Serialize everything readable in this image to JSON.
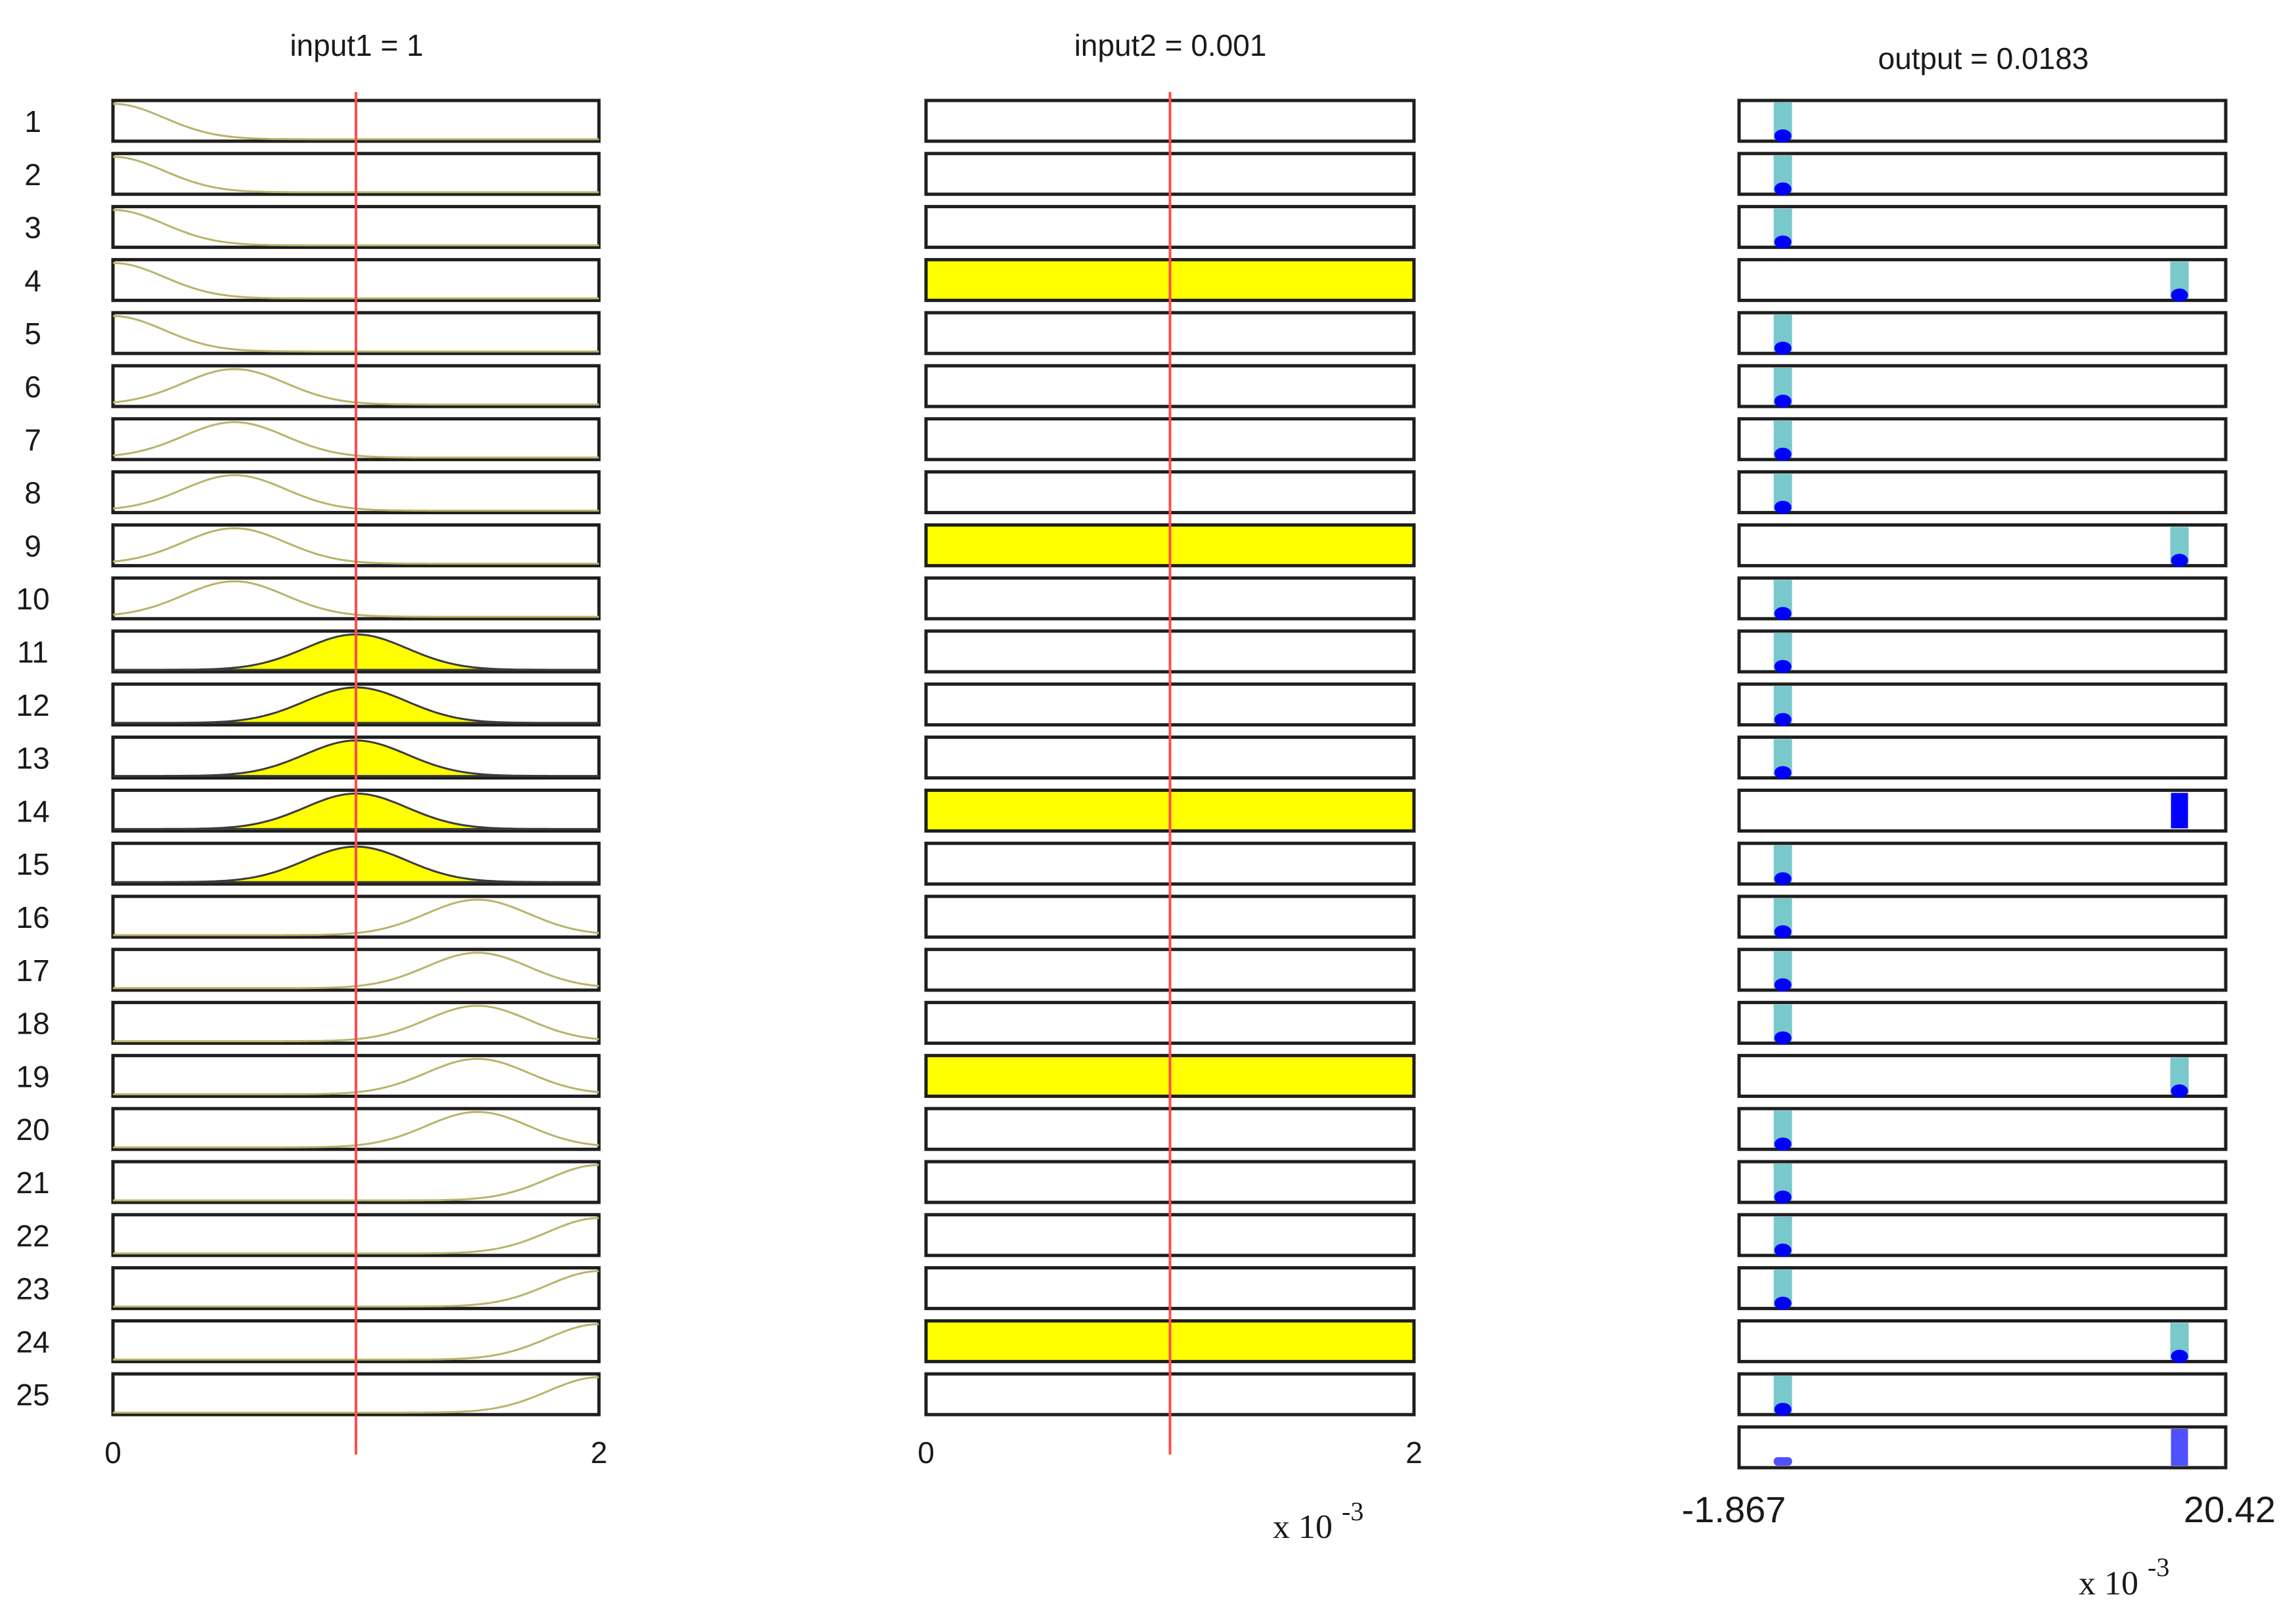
{
  "window": {
    "name": "Rule Viewer"
  },
  "colors": {
    "background": "#ffffff",
    "frame": "#1e1e1e",
    "index_line": "#ff4d4d",
    "mf_outline": "#b8b46a",
    "mf_fired_fill": "#ffff00",
    "mf_fired_outline": "#3c3c3c",
    "output_bar": "#78c8cc",
    "output_dot": "#0000ff",
    "aggregate": "#5050ff"
  },
  "rule_numbers": [
    "1",
    "2",
    "3",
    "4",
    "5",
    "6",
    "7",
    "8",
    "9",
    "10",
    "11",
    "12",
    "13",
    "14",
    "15",
    "16",
    "17",
    "18",
    "19",
    "20",
    "21",
    "22",
    "23",
    "24",
    "25"
  ],
  "input1": {
    "title": "input1 = 1",
    "value": 1,
    "range": [
      0,
      2
    ],
    "tick_min_label": "0",
    "tick_max_label": "2",
    "rule_mf": [
      "low",
      "low",
      "low",
      "low",
      "low",
      "mid_low",
      "mid_low",
      "mid_low",
      "mid_low",
      "mid_low",
      "mid",
      "mid",
      "mid",
      "mid",
      "mid",
      "mid_high",
      "mid_high",
      "mid_high",
      "mid_high",
      "mid_high",
      "high",
      "high",
      "high",
      "high",
      "high"
    ],
    "fired_mf": "mid"
  },
  "input2": {
    "title": "input2 = 0.001",
    "value": 0.5,
    "range": [
      0,
      1
    ],
    "tick_min_label": "0",
    "tick_max_label": "2",
    "scale_prefix": "x 10",
    "scale_exponent": "-3",
    "fired_rules": [
      4,
      9,
      14,
      19,
      24
    ]
  },
  "output": {
    "title": "output = 0.0183",
    "range_min_label": "-1.867",
    "range_max_label": "20.42",
    "scale_prefix": "x 10",
    "scale_exponent": "-3",
    "low_position": 0.09,
    "high_position": 0.905,
    "rule_output": [
      "low",
      "low",
      "low",
      "high",
      "low",
      "low",
      "low",
      "low",
      "high",
      "low",
      "low",
      "low",
      "low",
      "high",
      "low",
      "low",
      "low",
      "low",
      "high",
      "low",
      "low",
      "low",
      "low",
      "high",
      "low"
    ],
    "strongly_fired_rule": 14,
    "aggregate_positions": [
      0.09,
      0.905
    ]
  }
}
